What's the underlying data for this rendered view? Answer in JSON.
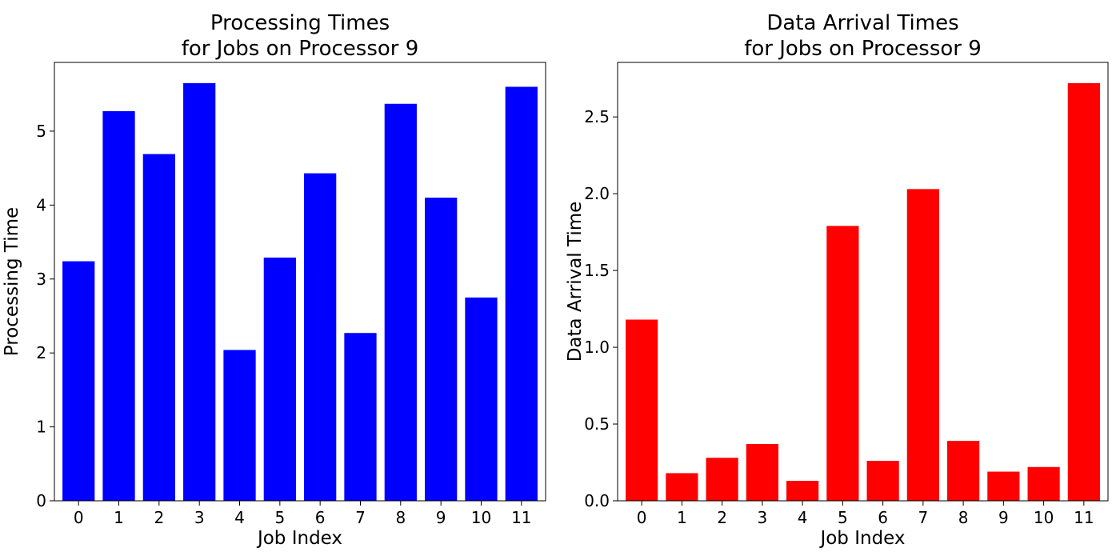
{
  "chart_data": [
    {
      "type": "bar",
      "title_lines": [
        "Processing Times",
        "for Jobs on Processor 9"
      ],
      "xlabel": "Job Index",
      "ylabel": "Processing Time",
      "categories": [
        "0",
        "1",
        "2",
        "3",
        "4",
        "5",
        "6",
        "7",
        "8",
        "9",
        "10",
        "11"
      ],
      "values": [
        3.24,
        5.27,
        4.69,
        5.65,
        2.04,
        3.29,
        4.43,
        2.27,
        5.37,
        4.1,
        2.75,
        5.6
      ],
      "ylim": [
        0,
        5.93
      ],
      "yticks": [
        0,
        1,
        2,
        3,
        4,
        5
      ],
      "ytick_labels": [
        "0",
        "1",
        "2",
        "3",
        "4",
        "5"
      ],
      "color": "#0000ff",
      "grid": false
    },
    {
      "type": "bar",
      "title_lines": [
        "Data Arrival Times",
        "for Jobs on Processor 9"
      ],
      "xlabel": "Job Index",
      "ylabel": "Data Arrival Time",
      "categories": [
        "0",
        "1",
        "2",
        "3",
        "4",
        "5",
        "6",
        "7",
        "8",
        "9",
        "10",
        "11"
      ],
      "values": [
        1.18,
        0.18,
        0.28,
        0.37,
        0.13,
        1.79,
        0.26,
        2.03,
        0.39,
        0.19,
        0.22,
        2.72
      ],
      "ylim": [
        0,
        2.855
      ],
      "yticks": [
        0,
        0.5,
        1.0,
        1.5,
        2.0,
        2.5
      ],
      "ytick_labels": [
        "0.0",
        "0.5",
        "1.0",
        "1.5",
        "2.0",
        "2.5"
      ],
      "color": "#ff0000",
      "grid": false
    }
  ]
}
